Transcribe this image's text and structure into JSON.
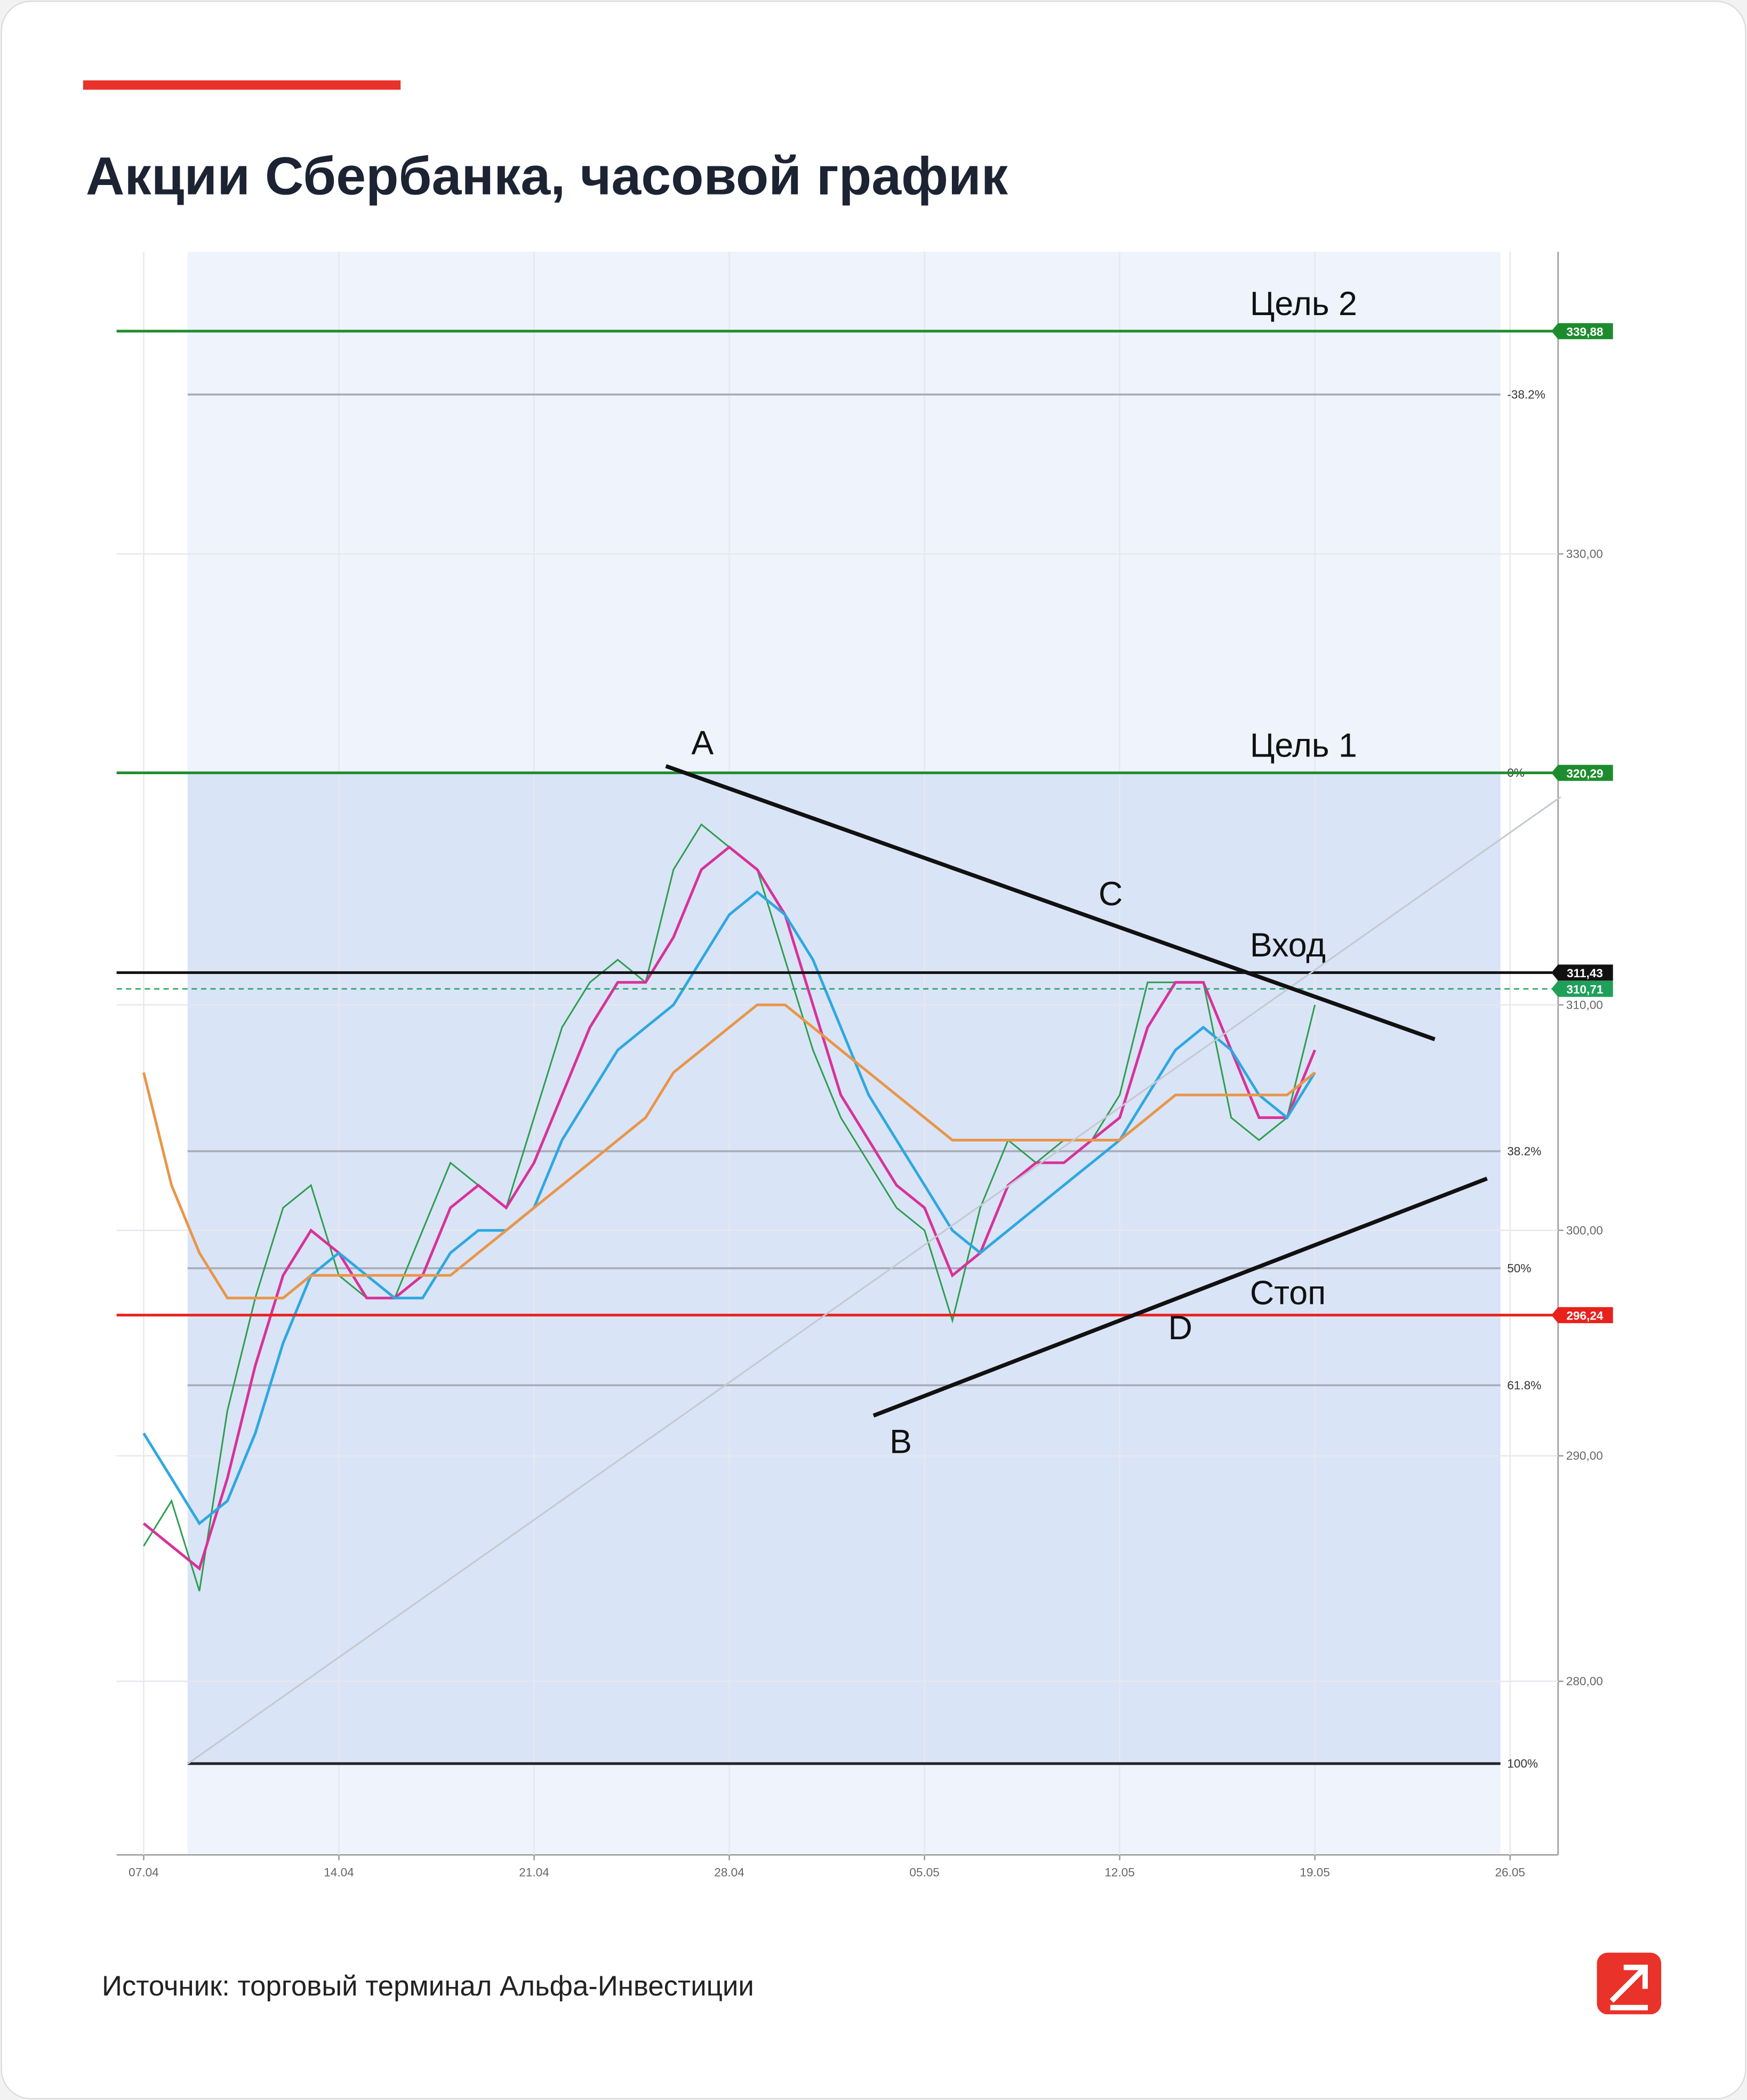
{
  "title": "Акции Сбербанка,  часовой график",
  "source": "Источник: торговый терминал Альфа-Инвестиции",
  "chart_data": {
    "type": "line",
    "xlim": [
      "06.04",
      "27.05"
    ],
    "xticks": [
      "07.04",
      "14.04",
      "21.04",
      "28.04",
      "05.05",
      "12.05",
      "19.05",
      "26.05"
    ],
    "ylim": [
      272.3,
      343.4
    ],
    "yticks": [
      {
        "value": 280,
        "label": "280,00"
      },
      {
        "value": 290,
        "label": "290,00"
      },
      {
        "value": 300,
        "label": "300,00"
      },
      {
        "value": 310,
        "label": "310,00"
      },
      {
        "value": 330,
        "label": "330,00"
      }
    ],
    "grid": true,
    "x": [
      "07.04",
      "08.04",
      "09.04",
      "10.04",
      "11.04",
      "12.04",
      "13.04",
      "14.04",
      "15.04",
      "16.04",
      "17.04",
      "18.04",
      "19.04",
      "20.04",
      "21.04",
      "22.04",
      "23.04",
      "24.04",
      "25.04",
      "26.04",
      "27.04",
      "28.04",
      "29.04",
      "30.04",
      "01.05",
      "02.05",
      "03.05",
      "04.05",
      "05.05",
      "06.05",
      "07.05",
      "08.05",
      "09.05",
      "10.05",
      "11.05",
      "12.05",
      "13.05",
      "14.05",
      "15.05",
      "16.05",
      "17.05",
      "18.05",
      "19.05"
    ],
    "series": [
      {
        "color": "#2e9e4f",
        "values": [
          286,
          288,
          284,
          292,
          297,
          301,
          302,
          298,
          297,
          297,
          300,
          303,
          302,
          301,
          305,
          309,
          311,
          312,
          311,
          316,
          318,
          317,
          316,
          312,
          308,
          305,
          303,
          301,
          300,
          296,
          301,
          304,
          303,
          304,
          304,
          306,
          311,
          311,
          311,
          305,
          304,
          305,
          310
        ]
      },
      {
        "color": "#d6339a",
        "values": [
          287,
          286,
          285,
          289,
          294,
          298,
          300,
          299,
          297,
          297,
          298,
          301,
          302,
          301,
          303,
          306,
          309,
          311,
          311,
          313,
          316,
          317,
          316,
          314,
          310,
          306,
          304,
          302,
          301,
          298,
          299,
          302,
          303,
          303,
          304,
          305,
          309,
          311,
          311,
          308,
          305,
          305,
          308
        ]
      },
      {
        "color": "#2fa8e0",
        "values": [
          291,
          289,
          287,
          288,
          291,
          295,
          298,
          299,
          298,
          297,
          297,
          299,
          300,
          300,
          301,
          304,
          306,
          308,
          309,
          310,
          312,
          314,
          315,
          314,
          312,
          309,
          306,
          304,
          302,
          300,
          299,
          300,
          301,
          302,
          303,
          304,
          306,
          308,
          309,
          308,
          306,
          305,
          307
        ]
      },
      {
        "color": "#e8964a",
        "values": [
          307,
          302,
          299,
          297,
          297,
          297,
          298,
          298,
          298,
          298,
          298,
          298,
          299,
          300,
          301,
          302,
          303,
          304,
          305,
          307,
          308,
          309,
          310,
          310,
          309,
          308,
          307,
          306,
          305,
          304,
          304,
          304,
          304,
          304,
          304,
          304,
          305,
          306,
          306,
          306,
          306,
          306,
          307
        ]
      }
    ],
    "levels": [
      {
        "label": "Цель 2",
        "value": 339.88,
        "value_label": "339,88",
        "color": "#1e8c2e"
      },
      {
        "label": "Цель 1",
        "value": 320.29,
        "value_label": "320,29",
        "color": "#1e8c2e"
      },
      {
        "label": "Вход",
        "value": 311.43,
        "value_label": "311,43",
        "color": "#111111"
      },
      {
        "label": "Стоп",
        "value": 296.24,
        "value_label": "296,24",
        "color": "#e8211d"
      }
    ],
    "current": {
      "value": 310.71,
      "value_label": "310,71",
      "color": "#1fa05a"
    },
    "fib_levels": [
      {
        "value": 337.07,
        "label": "-38.2%"
      },
      {
        "value": 320.29,
        "label": "0%"
      },
      {
        "value": 303.51,
        "label": "38.2%"
      },
      {
        "value": 298.32,
        "label": "50%"
      },
      {
        "value": 293.13,
        "label": "61.8%"
      },
      {
        "value": 276.35,
        "label": "100%"
      }
    ],
    "annotations": [
      "A",
      "B",
      "C",
      "D"
    ]
  }
}
